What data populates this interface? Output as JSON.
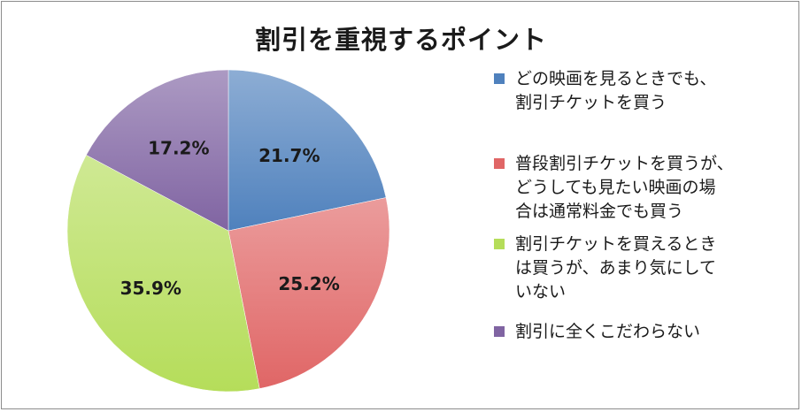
{
  "chart_data": {
    "type": "pie",
    "title": "割引を重視するポイント",
    "categories": [
      "どの映画を見るときでも、\n割引チケットを買う",
      "普段割引チケットを買うが、\nどうしても見たい映画の場\n合は通常料金でも買う",
      "割引チケットを買えるとき\nは買うが、あまり気にして\nいない",
      "割引に全くこだわらない"
    ],
    "values": [
      21.7,
      25.2,
      35.9,
      17.2
    ],
    "labels": [
      "21.7%",
      "25.2%",
      "35.9%",
      "17.2%"
    ],
    "colors": [
      "#4f81bd",
      "#e06666",
      "#b5dd5a",
      "#8064a2"
    ],
    "legend_position": "right"
  }
}
